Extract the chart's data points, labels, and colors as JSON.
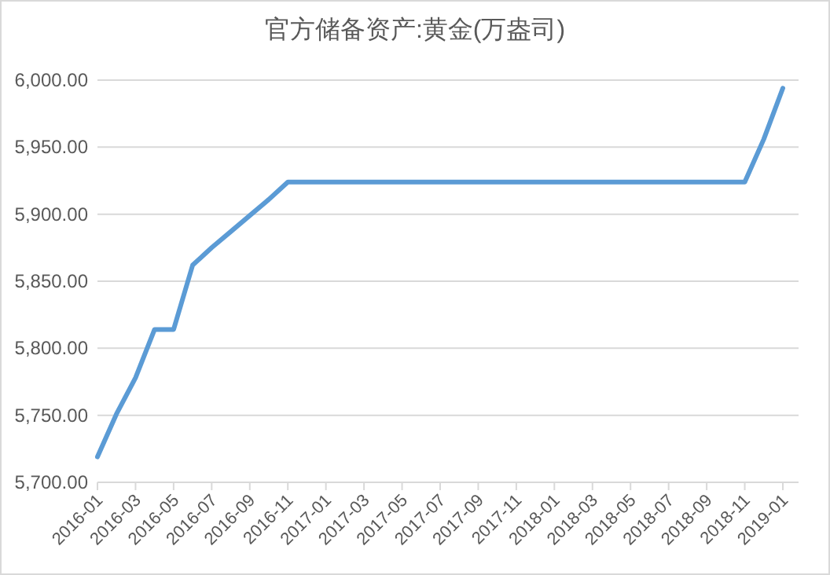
{
  "chart_data": {
    "type": "line",
    "title": "官方储备资产:黄金(万盎司)",
    "categories": [
      "2016-01",
      null,
      "2016-03",
      null,
      "2016-05",
      null,
      "2016-07",
      null,
      "2016-09",
      null,
      "2016-11",
      null,
      "2017-01",
      null,
      "2017-03",
      null,
      "2017-05",
      null,
      "2017-07",
      null,
      "2017-09",
      null,
      "2017-11",
      null,
      "2018-01",
      null,
      "2018-03",
      null,
      "2018-05",
      null,
      "2018-07",
      null,
      "2018-09",
      null,
      "2018-11",
      null,
      "2019-01"
    ],
    "series": [
      {
        "color": "#5b9bd5",
        "values": [
          5719,
          5751,
          5778,
          5814,
          5814,
          5862,
          5875,
          5887,
          5899,
          5911,
          5924,
          5924,
          5924,
          5924,
          5924,
          5924,
          5924,
          5924,
          5924,
          5924,
          5924,
          5924,
          5924,
          5924,
          5924,
          5924,
          5924,
          5924,
          5924,
          5924,
          5924,
          5924,
          5924,
          5924,
          5924,
          5956,
          5994
        ]
      }
    ],
    "ylim": [
      5700,
      6000
    ],
    "yticks": [
      {
        "value": 5700,
        "label": "5,700.00"
      },
      {
        "value": 5750,
        "label": "5,750.00"
      },
      {
        "value": 5800,
        "label": "5,800.00"
      },
      {
        "value": 5850,
        "label": "5,850.00"
      },
      {
        "value": 5900,
        "label": "5,900.00"
      },
      {
        "value": 5950,
        "label": "5,950.00"
      },
      {
        "value": 6000,
        "label": "6,000.00"
      }
    ],
    "grid": "y"
  }
}
